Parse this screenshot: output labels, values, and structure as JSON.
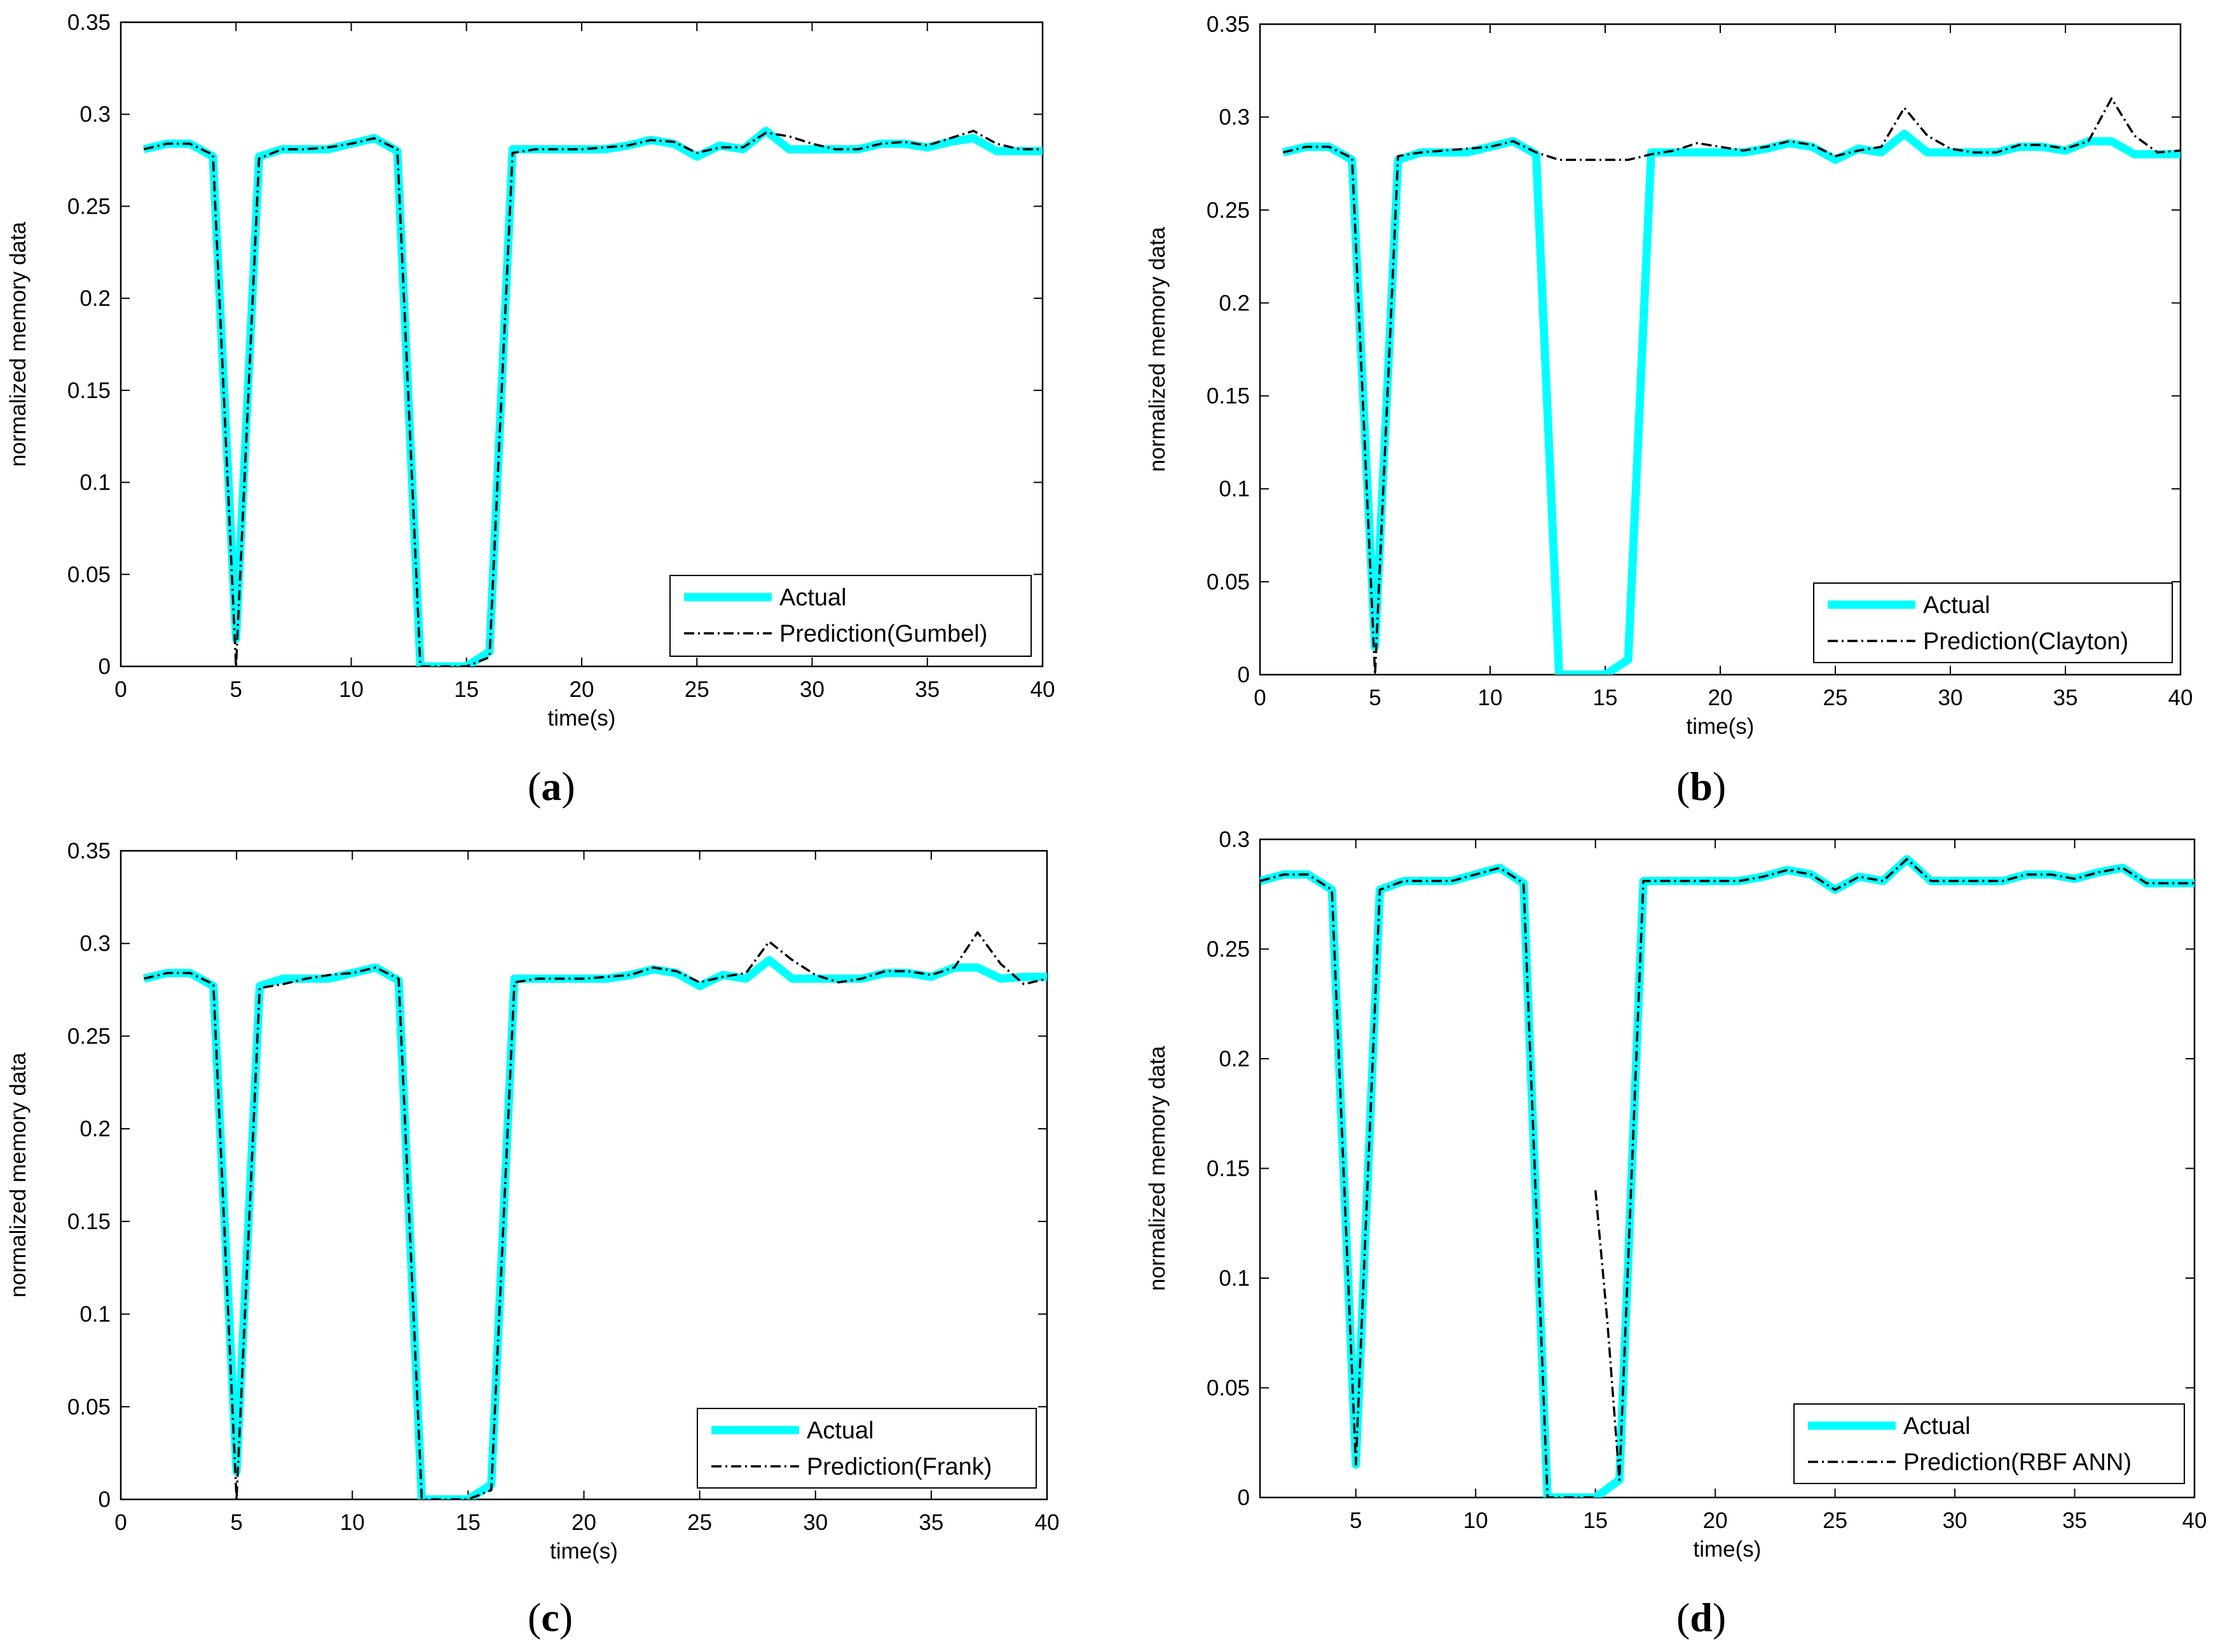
{
  "figure": {
    "colors": {
      "actual": "#00FFFF",
      "prediction": "#000000",
      "axis": "#000000",
      "background": "#FFFFFF"
    }
  },
  "chart_data": [
    {
      "type": "line",
      "panel": "a",
      "caption_letter": "a",
      "xlabel": "time(s)",
      "ylabel": "normalized memory data",
      "xlim": [
        0,
        40
      ],
      "ylim": [
        0,
        0.35
      ],
      "xticks": [
        0,
        5,
        10,
        15,
        20,
        25,
        30,
        35,
        40
      ],
      "yticks": [
        0,
        0.05,
        0.1,
        0.15,
        0.2,
        0.25,
        0.3,
        0.35
      ],
      "ytick_labels": [
        "0",
        "0.05",
        "0.1",
        "0.15",
        "0.2",
        "0.25",
        "0.3",
        "0.35"
      ],
      "legend_position": "bottom-right",
      "series": [
        {
          "name": "Actual",
          "x": [
            1,
            2,
            3,
            4,
            5,
            6,
            7,
            8,
            9,
            10,
            11,
            12,
            13,
            14,
            15,
            16,
            17,
            18,
            19,
            20,
            21,
            22,
            23,
            24,
            25,
            26,
            27,
            28,
            29,
            30,
            31,
            32,
            33,
            34,
            35,
            36,
            37,
            38,
            39,
            40
          ],
          "values": [
            0.281,
            0.284,
            0.284,
            0.277,
            0.015,
            0.277,
            0.281,
            0.281,
            0.281,
            0.284,
            0.287,
            0.28,
            0,
            0,
            0,
            0.008,
            0.281,
            0.281,
            0.281,
            0.281,
            0.281,
            0.283,
            0.286,
            0.284,
            0.277,
            0.283,
            0.281,
            0.291,
            0.281,
            0.281,
            0.281,
            0.281,
            0.284,
            0.284,
            0.282,
            0.285,
            0.287,
            0.28,
            0.28,
            0.28
          ]
        },
        {
          "name": "Prediction(Gumbel)",
          "x": [
            1,
            2,
            3,
            4,
            5,
            6,
            7,
            8,
            9,
            10,
            11,
            12,
            13,
            14,
            15,
            16,
            17,
            18,
            19,
            20,
            21,
            22,
            23,
            24,
            25,
            26,
            27,
            28,
            29,
            30,
            31,
            32,
            33,
            34,
            35,
            36,
            37,
            38,
            39,
            40
          ],
          "values": [
            0.281,
            0.284,
            0.284,
            0.278,
            0,
            0.276,
            0.281,
            0.281,
            0.282,
            0.284,
            0.287,
            0.281,
            0,
            0,
            0,
            0.005,
            0.279,
            0.281,
            0.281,
            0.281,
            0.282,
            0.283,
            0.286,
            0.285,
            0.279,
            0.282,
            0.282,
            0.29,
            0.288,
            0.284,
            0.281,
            0.281,
            0.284,
            0.285,
            0.283,
            0.287,
            0.291,
            0.284,
            0.281,
            0.281
          ]
        }
      ]
    },
    {
      "type": "line",
      "panel": "b",
      "caption_letter": "b",
      "xlabel": "time(s)",
      "ylabel": "normalized memory data",
      "xlim": [
        0,
        40
      ],
      "ylim": [
        0,
        0.35
      ],
      "xticks": [
        0,
        5,
        10,
        15,
        20,
        25,
        30,
        35,
        40
      ],
      "yticks": [
        0,
        0.05,
        0.1,
        0.15,
        0.2,
        0.25,
        0.3,
        0.35
      ],
      "ytick_labels": [
        "0",
        "0.05",
        "0.1",
        "0.15",
        "0.2",
        "0.25",
        "0.3",
        "0.35"
      ],
      "legend_position": "bottom-right",
      "series": [
        {
          "name": "Actual",
          "x": [
            1,
            2,
            3,
            4,
            5,
            6,
            7,
            8,
            9,
            10,
            11,
            12,
            13,
            14,
            15,
            16,
            17,
            18,
            19,
            20,
            21,
            22,
            23,
            24,
            25,
            26,
            27,
            28,
            29,
            30,
            31,
            32,
            33,
            34,
            35,
            36,
            37,
            38,
            39,
            40
          ],
          "values": [
            0.281,
            0.284,
            0.284,
            0.277,
            0.015,
            0.277,
            0.281,
            0.281,
            0.281,
            0.284,
            0.287,
            0.28,
            0,
            0,
            0,
            0.008,
            0.281,
            0.281,
            0.281,
            0.281,
            0.281,
            0.283,
            0.286,
            0.284,
            0.277,
            0.283,
            0.281,
            0.291,
            0.281,
            0.281,
            0.281,
            0.281,
            0.284,
            0.284,
            0.282,
            0.287,
            0.287,
            0.28,
            0.28,
            0.28
          ]
        },
        {
          "name": "Prediction(Clayton)",
          "x": [
            1,
            2,
            3,
            4,
            5,
            6,
            7,
            8,
            9,
            10,
            11,
            12,
            13,
            14,
            15,
            16,
            17,
            18,
            19,
            20,
            21,
            22,
            23,
            24,
            25,
            26,
            27,
            28,
            29,
            30,
            31,
            32,
            33,
            34,
            35,
            36,
            37,
            38,
            39,
            40
          ],
          "values": [
            0.281,
            0.284,
            0.284,
            0.278,
            0,
            0.279,
            0.281,
            0.282,
            0.283,
            0.284,
            0.287,
            0.281,
            0.277,
            0.277,
            0.277,
            0.277,
            0.28,
            0.282,
            0.286,
            0.284,
            0.282,
            0.284,
            0.287,
            0.285,
            0.279,
            0.282,
            0.284,
            0.305,
            0.29,
            0.283,
            0.281,
            0.281,
            0.285,
            0.285,
            0.283,
            0.287,
            0.31,
            0.29,
            0.281,
            0.282
          ]
        }
      ]
    },
    {
      "type": "line",
      "panel": "c",
      "caption_letter": "c",
      "xlabel": "time(s)",
      "ylabel": "normalized memory data",
      "xlim": [
        0,
        40
      ],
      "ylim": [
        0,
        0.35
      ],
      "xticks": [
        0,
        5,
        10,
        15,
        20,
        25,
        30,
        35,
        40
      ],
      "yticks": [
        0,
        0.05,
        0.1,
        0.15,
        0.2,
        0.25,
        0.3,
        0.35
      ],
      "ytick_labels": [
        "0",
        "0.05",
        "0.1",
        "0.15",
        "0.2",
        "0.25",
        "0.3",
        "0.35"
      ],
      "legend_position": "bottom-right",
      "series": [
        {
          "name": "Actual",
          "x": [
            1,
            2,
            3,
            4,
            5,
            6,
            7,
            8,
            9,
            10,
            11,
            12,
            13,
            14,
            15,
            16,
            17,
            18,
            19,
            20,
            21,
            22,
            23,
            24,
            25,
            26,
            27,
            28,
            29,
            30,
            31,
            32,
            33,
            34,
            35,
            36,
            37,
            38,
            39,
            40
          ],
          "values": [
            0.281,
            0.284,
            0.284,
            0.277,
            0.015,
            0.277,
            0.281,
            0.281,
            0.281,
            0.284,
            0.287,
            0.28,
            0,
            0,
            0,
            0.008,
            0.281,
            0.281,
            0.281,
            0.281,
            0.281,
            0.283,
            0.286,
            0.284,
            0.277,
            0.283,
            0.281,
            0.291,
            0.281,
            0.281,
            0.281,
            0.281,
            0.284,
            0.284,
            0.282,
            0.287,
            0.287,
            0.281,
            0.282,
            0.282
          ]
        },
        {
          "name": "Prediction(Frank)",
          "x": [
            1,
            2,
            3,
            4,
            5,
            6,
            7,
            8,
            9,
            10,
            11,
            12,
            13,
            14,
            15,
            16,
            17,
            18,
            19,
            20,
            21,
            22,
            23,
            24,
            25,
            26,
            27,
            28,
            29,
            30,
            31,
            32,
            33,
            34,
            35,
            36,
            37,
            38,
            39,
            40
          ],
          "values": [
            0.281,
            0.284,
            0.284,
            0.278,
            0,
            0.276,
            0.278,
            0.281,
            0.283,
            0.284,
            0.287,
            0.281,
            0,
            0,
            0,
            0.005,
            0.279,
            0.281,
            0.281,
            0.281,
            0.282,
            0.283,
            0.287,
            0.285,
            0.279,
            0.282,
            0.284,
            0.301,
            0.291,
            0.283,
            0.279,
            0.281,
            0.285,
            0.285,
            0.283,
            0.287,
            0.306,
            0.289,
            0.278,
            0.281
          ]
        }
      ]
    },
    {
      "type": "line",
      "panel": "d",
      "caption_letter": "d",
      "xlabel": "time(s)",
      "ylabel": "normalized memory data",
      "xlim": [
        1,
        40
      ],
      "ylim": [
        0,
        0.3
      ],
      "xticks": [
        5,
        10,
        15,
        20,
        25,
        30,
        35,
        40
      ],
      "yticks": [
        0,
        0.05,
        0.1,
        0.15,
        0.2,
        0.25,
        0.3
      ],
      "ytick_labels": [
        "0",
        "0.05",
        "0.1",
        "0.15",
        "0.2",
        "0.25",
        "0.3"
      ],
      "legend_position": "bottom-right",
      "series": [
        {
          "name": "Actual",
          "x": [
            1,
            2,
            3,
            4,
            5,
            6,
            7,
            8,
            9,
            10,
            11,
            12,
            13,
            14,
            15,
            16,
            17,
            18,
            19,
            20,
            21,
            22,
            23,
            24,
            25,
            26,
            27,
            28,
            29,
            30,
            31,
            32,
            33,
            34,
            35,
            36,
            37,
            38,
            39,
            40
          ],
          "values": [
            0.281,
            0.284,
            0.284,
            0.277,
            0.015,
            0.277,
            0.281,
            0.281,
            0.281,
            0.284,
            0.287,
            0.28,
            0,
            0,
            0,
            0.008,
            0.281,
            0.281,
            0.281,
            0.281,
            0.281,
            0.283,
            0.286,
            0.284,
            0.277,
            0.283,
            0.281,
            0.291,
            0.281,
            0.281,
            0.281,
            0.281,
            0.284,
            0.284,
            0.282,
            0.285,
            0.287,
            0.28,
            0.28,
            0.28
          ]
        },
        {
          "name": "Prediction(RBF ANN)",
          "x": [
            1,
            2,
            3,
            4,
            5,
            6,
            7,
            8,
            9,
            10,
            11,
            12,
            13,
            14,
            15,
            15,
            15.5,
            16,
            17,
            18,
            19,
            20,
            21,
            22,
            23,
            24,
            25,
            26,
            27,
            28,
            29,
            30,
            31,
            32,
            33,
            34,
            35,
            36,
            37,
            38,
            39,
            40
          ],
          "values": [
            0.281,
            0.284,
            0.284,
            0.277,
            0.015,
            0.277,
            0.281,
            0.281,
            0.281,
            0.284,
            0.287,
            0.28,
            0,
            0,
            0,
            0.14,
            0.08,
            0.008,
            0.281,
            0.281,
            0.281,
            0.281,
            0.281,
            0.283,
            0.286,
            0.284,
            0.277,
            0.283,
            0.281,
            0.291,
            0.281,
            0.281,
            0.281,
            0.281,
            0.284,
            0.284,
            0.282,
            0.285,
            0.287,
            0.28,
            0.28,
            0.28
          ],
          "segments": [
            [
              0,
              14
            ],
            [
              15,
              41
            ]
          ]
        }
      ]
    }
  ]
}
